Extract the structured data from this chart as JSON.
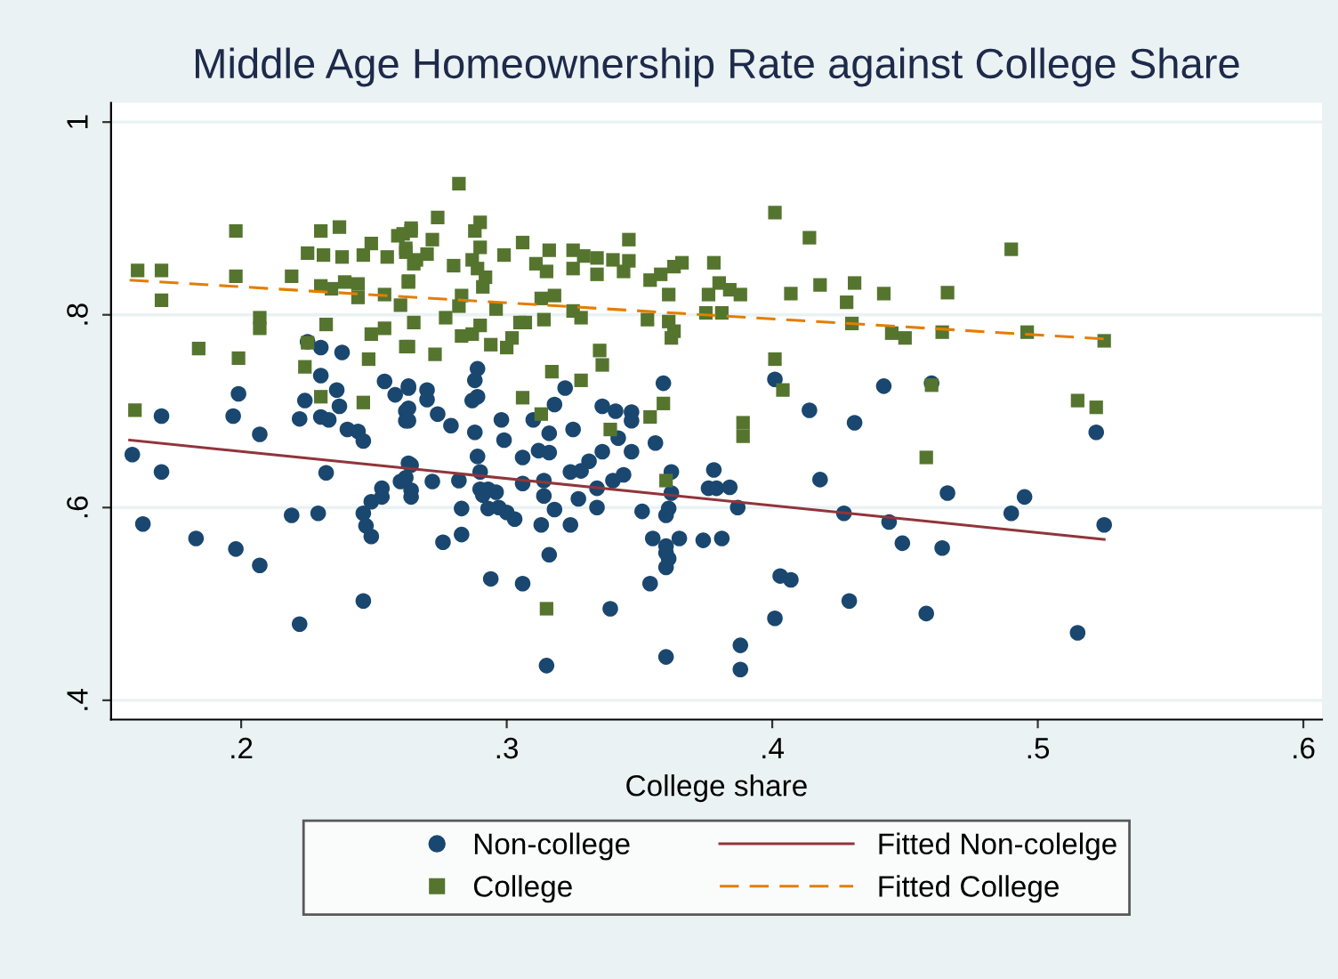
{
  "chart_data": {
    "type": "scatter",
    "title": "Middle Age Homeownership Rate against College Share",
    "xlabel": "College share",
    "xlim": [
      0.151,
      0.607
    ],
    "ylim": [
      0.38,
      1.02
    ],
    "xticks": [
      {
        "value": 0.2,
        "label": ".2"
      },
      {
        "value": 0.3,
        "label": ".3"
      },
      {
        "value": 0.4,
        "label": ".4"
      },
      {
        "value": 0.5,
        "label": ".5"
      },
      {
        "value": 0.6,
        "label": ".6"
      }
    ],
    "yticks": [
      {
        "value": 0.4,
        "label": ".4"
      },
      {
        "value": 0.6,
        "label": ".6"
      },
      {
        "value": 0.8,
        "label": ".8"
      },
      {
        "value": 1,
        "label": "1"
      }
    ],
    "grid": "y",
    "legend": "bottom",
    "series": [
      {
        "name": "Non-college",
        "marker": "circle",
        "color": "#1a476f",
        "x": [
          0.159,
          0.17,
          0.17,
          0.163,
          0.183,
          0.198,
          0.199,
          0.197,
          0.207,
          0.207,
          0.219,
          0.222,
          0.229,
          0.232,
          0.225,
          0.23,
          0.238,
          0.23,
          0.236,
          0.224,
          0.222,
          0.23,
          0.233,
          0.237,
          0.24,
          0.244,
          0.246,
          0.246,
          0.247,
          0.249,
          0.246,
          0.254,
          0.258,
          0.263,
          0.262,
          0.262,
          0.249,
          0.253,
          0.253,
          0.26,
          0.264,
          0.264,
          0.263,
          0.27,
          0.27,
          0.263,
          0.263,
          0.274,
          0.279,
          0.289,
          0.288,
          0.287,
          0.289,
          0.288,
          0.298,
          0.299,
          0.31,
          0.318,
          0.322,
          0.316,
          0.325,
          0.336,
          0.341,
          0.347,
          0.347,
          0.342,
          0.347,
          0.356,
          0.359,
          0.263,
          0.262,
          0.264,
          0.272,
          0.282,
          0.289,
          0.29,
          0.29,
          0.291,
          0.293,
          0.296,
          0.283,
          0.293,
          0.297,
          0.3,
          0.303,
          0.306,
          0.306,
          0.312,
          0.316,
          0.314,
          0.314,
          0.318,
          0.313,
          0.324,
          0.324,
          0.327,
          0.328,
          0.331,
          0.336,
          0.334,
          0.334,
          0.34,
          0.344,
          0.351,
          0.355,
          0.36,
          0.361,
          0.354,
          0.361,
          0.36,
          0.276,
          0.283,
          0.294,
          0.306,
          0.316,
          0.339,
          0.315,
          0.362,
          0.362,
          0.36,
          0.365,
          0.36,
          0.36,
          0.374,
          0.381,
          0.376,
          0.378,
          0.379,
          0.384,
          0.387,
          0.388,
          0.388,
          0.401,
          0.414,
          0.403,
          0.407,
          0.401,
          0.418,
          0.427,
          0.429,
          0.431,
          0.442,
          0.444,
          0.449,
          0.458,
          0.46,
          0.464,
          0.466,
          0.49,
          0.495,
          0.515,
          0.522,
          0.525
        ],
        "values": [
          0.655,
          0.695,
          0.637,
          0.583,
          0.568,
          0.557,
          0.718,
          0.695,
          0.676,
          0.54,
          0.592,
          0.479,
          0.594,
          0.636,
          0.772,
          0.766,
          0.761,
          0.737,
          0.722,
          0.711,
          0.692,
          0.694,
          0.691,
          0.705,
          0.681,
          0.679,
          0.669,
          0.594,
          0.581,
          0.57,
          0.503,
          0.731,
          0.717,
          0.726,
          0.7,
          0.69,
          0.606,
          0.611,
          0.62,
          0.627,
          0.611,
          0.644,
          0.724,
          0.722,
          0.712,
          0.703,
          0.69,
          0.697,
          0.685,
          0.744,
          0.732,
          0.711,
          0.715,
          0.678,
          0.691,
          0.67,
          0.691,
          0.707,
          0.724,
          0.677,
          0.681,
          0.705,
          0.7,
          0.699,
          0.69,
          0.672,
          0.658,
          0.667,
          0.729,
          0.646,
          0.631,
          0.618,
          0.627,
          0.628,
          0.653,
          0.637,
          0.619,
          0.613,
          0.619,
          0.616,
          0.599,
          0.599,
          0.6,
          0.595,
          0.588,
          0.652,
          0.625,
          0.659,
          0.657,
          0.628,
          0.612,
          0.598,
          0.582,
          0.582,
          0.637,
          0.609,
          0.638,
          0.648,
          0.658,
          0.62,
          0.6,
          0.628,
          0.634,
          0.596,
          0.568,
          0.56,
          0.547,
          0.521,
          0.599,
          0.445,
          0.564,
          0.572,
          0.526,
          0.521,
          0.551,
          0.495,
          0.436,
          0.637,
          0.615,
          0.592,
          0.568,
          0.553,
          0.538,
          0.566,
          0.568,
          0.62,
          0.639,
          0.62,
          0.621,
          0.6,
          0.457,
          0.432,
          0.733,
          0.701,
          0.529,
          0.525,
          0.485,
          0.629,
          0.594,
          0.503,
          0.688,
          0.726,
          0.585,
          0.563,
          0.49,
          0.729,
          0.558,
          0.615,
          0.594,
          0.611,
          0.47,
          0.678,
          0.582
        ]
      },
      {
        "name": "College",
        "marker": "square",
        "color": "#55752f",
        "x": [
          0.161,
          0.17,
          0.17,
          0.198,
          0.198,
          0.207,
          0.207,
          0.184,
          0.199,
          0.16,
          0.219,
          0.225,
          0.23,
          0.237,
          0.231,
          0.238,
          0.246,
          0.249,
          0.255,
          0.259,
          0.264,
          0.262,
          0.265,
          0.23,
          0.234,
          0.239,
          0.244,
          0.244,
          0.254,
          0.26,
          0.263,
          0.232,
          0.249,
          0.254,
          0.262,
          0.248,
          0.225,
          0.224,
          0.23,
          0.246,
          0.282,
          0.274,
          0.264,
          0.261,
          0.272,
          0.262,
          0.266,
          0.27,
          0.29,
          0.288,
          0.29,
          0.287,
          0.28,
          0.289,
          0.292,
          0.299,
          0.306,
          0.316,
          0.311,
          0.315,
          0.325,
          0.325,
          0.329,
          0.334,
          0.334,
          0.34,
          0.346,
          0.346,
          0.344,
          0.354,
          0.358,
          0.363,
          0.361,
          0.263,
          0.283,
          0.282,
          0.291,
          0.296,
          0.29,
          0.287,
          0.283,
          0.294,
          0.3,
          0.302,
          0.305,
          0.307,
          0.314,
          0.318,
          0.313,
          0.325,
          0.328,
          0.263,
          0.265,
          0.277,
          0.273,
          0.353,
          0.361,
          0.362,
          0.335,
          0.336,
          0.317,
          0.328,
          0.306,
          0.313,
          0.339,
          0.354,
          0.359,
          0.36,
          0.315,
          0.366,
          0.378,
          0.38,
          0.376,
          0.384,
          0.388,
          0.375,
          0.381,
          0.363,
          0.401,
          0.414,
          0.407,
          0.418,
          0.431,
          0.428,
          0.43,
          0.442,
          0.445,
          0.45,
          0.466,
          0.464,
          0.401,
          0.404,
          0.389,
          0.389,
          0.46,
          0.458,
          0.49,
          0.496,
          0.525,
          0.515,
          0.522
        ],
        "values": [
          0.846,
          0.846,
          0.815,
          0.887,
          0.84,
          0.797,
          0.786,
          0.765,
          0.755,
          0.701,
          0.84,
          0.864,
          0.887,
          0.891,
          0.862,
          0.86,
          0.862,
          0.874,
          0.86,
          0.882,
          0.887,
          0.865,
          0.853,
          0.83,
          0.827,
          0.834,
          0.832,
          0.818,
          0.821,
          0.81,
          0.834,
          0.79,
          0.78,
          0.786,
          0.767,
          0.754,
          0.771,
          0.746,
          0.715,
          0.709,
          0.936,
          0.901,
          0.89,
          0.884,
          0.878,
          0.869,
          0.857,
          0.863,
          0.896,
          0.887,
          0.87,
          0.857,
          0.851,
          0.848,
          0.839,
          0.862,
          0.875,
          0.867,
          0.853,
          0.845,
          0.867,
          0.848,
          0.861,
          0.859,
          0.842,
          0.857,
          0.856,
          0.878,
          0.845,
          0.836,
          0.842,
          0.85,
          0.821,
          0.835,
          0.82,
          0.809,
          0.829,
          0.806,
          0.789,
          0.78,
          0.778,
          0.769,
          0.766,
          0.776,
          0.792,
          0.792,
          0.795,
          0.82,
          0.817,
          0.804,
          0.797,
          0.767,
          0.792,
          0.797,
          0.759,
          0.795,
          0.793,
          0.776,
          0.763,
          0.748,
          0.741,
          0.732,
          0.714,
          0.697,
          0.681,
          0.694,
          0.708,
          0.628,
          0.495,
          0.854,
          0.854,
          0.833,
          0.821,
          0.826,
          0.821,
          0.802,
          0.802,
          0.783,
          0.906,
          0.88,
          0.822,
          0.831,
          0.833,
          0.813,
          0.791,
          0.822,
          0.781,
          0.776,
          0.823,
          0.782,
          0.754,
          0.722,
          0.688,
          0.674,
          0.727,
          0.652,
          0.868,
          0.782,
          0.773,
          0.711,
          0.704
        ]
      },
      {
        "name": "Fitted Non-colelge",
        "type": "line",
        "line_style": "solid",
        "color": "#90353b",
        "x": [
          0.158,
          0.525
        ],
        "values": [
          0.67,
          0.567
        ]
      },
      {
        "name": "Fitted College",
        "type": "line",
        "line_style": "dashed",
        "color": "#e37e00",
        "x": [
          0.158,
          0.525
        ],
        "values": [
          0.836,
          0.775
        ]
      }
    ]
  }
}
